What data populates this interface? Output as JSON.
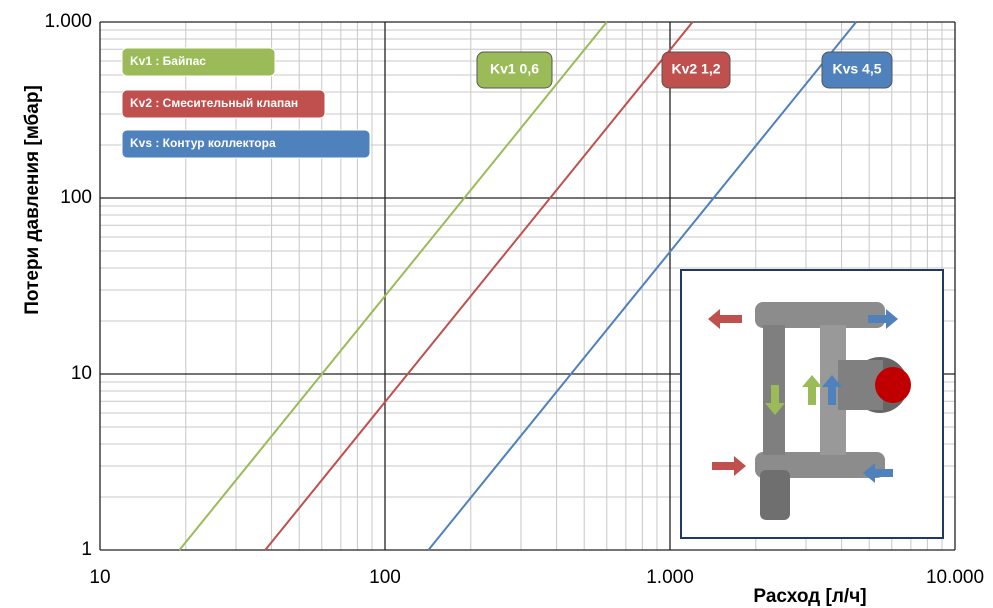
{
  "chart_data": {
    "type": "line",
    "y_label": "Потери давления [мбар]",
    "x_label": "Расход  [л/ч]",
    "xscale": "log",
    "yscale": "log",
    "xlim": [
      10,
      10000
    ],
    "ylim": [
      1,
      1000
    ],
    "xticks": [
      10,
      100,
      {
        "value": 1000,
        "label": "1.000"
      },
      {
        "value": 10000,
        "label": "10.000"
      }
    ],
    "yticks": [
      1,
      10,
      100,
      {
        "value": 1000,
        "label": "1.000"
      }
    ],
    "grid": true,
    "minor_grid": true,
    "series": [
      {
        "name": "Kv1 : Байпас",
        "label": "Kv1 0,6",
        "color": "#9bbb59",
        "x": [
          19,
          600
        ],
        "values": [
          1,
          1000
        ]
      },
      {
        "name": "Kv2 : Смесительный клапан",
        "label": "Kv2 1,2",
        "color": "#c0504d",
        "x": [
          38,
          1200
        ],
        "values": [
          1,
          1000
        ]
      },
      {
        "name": "Kvs : Контур коллектора",
        "label": "Kvs 4,5",
        "color": "#4f81bd",
        "x": [
          142,
          4500
        ],
        "values": [
          1,
          1000
        ]
      }
    ]
  }
}
